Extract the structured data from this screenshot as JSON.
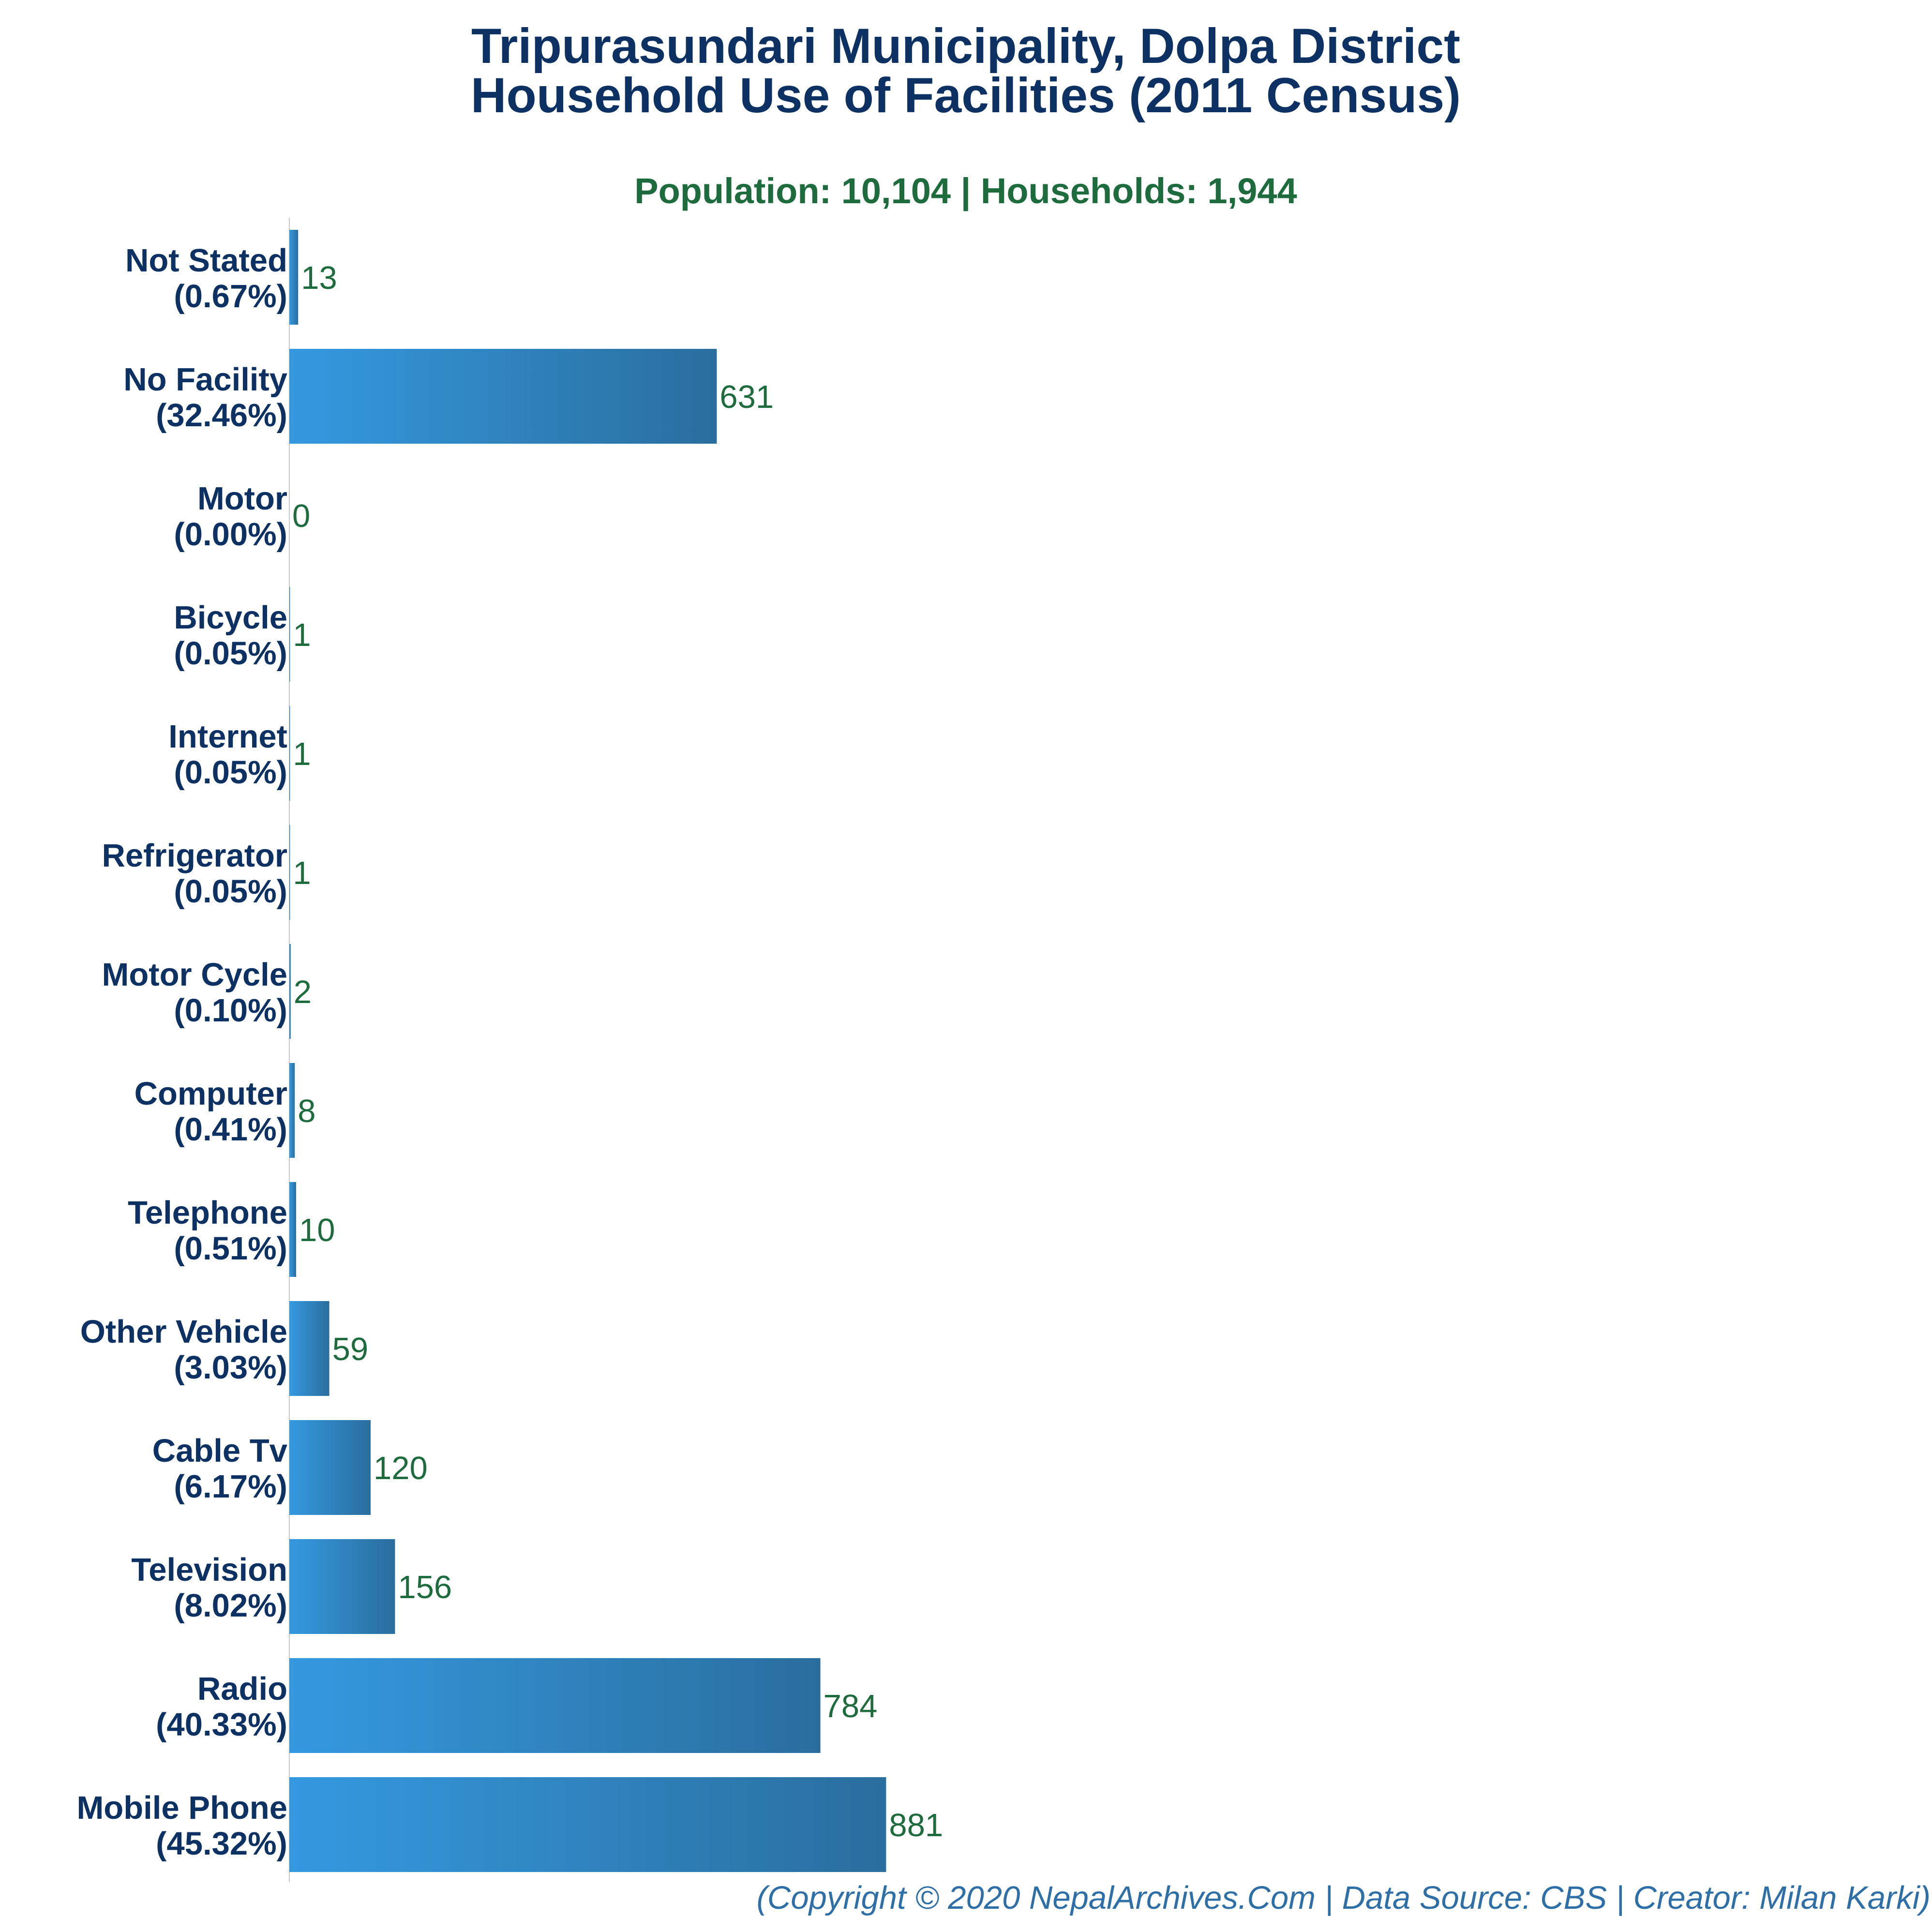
{
  "colors": {
    "title": "#0d3162",
    "subtitle": "#1e6b3e",
    "category_label": "#0d3162",
    "value_label": "#1e6b3e",
    "footer": "#2d6fa6",
    "bar_gradient_start": "#3599e0",
    "bar_gradient_end": "#2a6e9e",
    "axis_line": "#c8c8c8"
  },
  "chart_data": {
    "type": "bar",
    "orientation": "horizontal",
    "title_lines": [
      "Tripurasundari Municipality, Dolpa District",
      "Household Use of Facilities (2011 Census)"
    ],
    "subtitle": "Population: 10,104 | Households: 1,944",
    "categories": [
      {
        "name": "Not Stated",
        "pct": "(0.67%)"
      },
      {
        "name": "No Facility",
        "pct": "(32.46%)"
      },
      {
        "name": "Motor",
        "pct": "(0.00%)"
      },
      {
        "name": "Bicycle",
        "pct": "(0.05%)"
      },
      {
        "name": "Internet",
        "pct": "(0.05%)"
      },
      {
        "name": "Refrigerator",
        "pct": "(0.05%)"
      },
      {
        "name": "Motor Cycle",
        "pct": "(0.10%)"
      },
      {
        "name": "Computer",
        "pct": "(0.41%)"
      },
      {
        "name": "Telephone",
        "pct": "(0.51%)"
      },
      {
        "name": "Other Vehicle",
        "pct": "(3.03%)"
      },
      {
        "name": "Cable Tv",
        "pct": "(6.17%)"
      },
      {
        "name": "Television",
        "pct": "(8.02%)"
      },
      {
        "name": "Radio",
        "pct": "(40.33%)"
      },
      {
        "name": "Mobile Phone",
        "pct": "(45.32%)"
      }
    ],
    "values": [
      13,
      631,
      0,
      1,
      1,
      1,
      2,
      8,
      10,
      59,
      120,
      156,
      784,
      881
    ],
    "xlim": [
      0,
      1000
    ],
    "grid": false,
    "legend": "none"
  },
  "footer": "(Copyright © 2020 NepalArchives.Com | Data Source: CBS | Creator: Milan Karki)"
}
